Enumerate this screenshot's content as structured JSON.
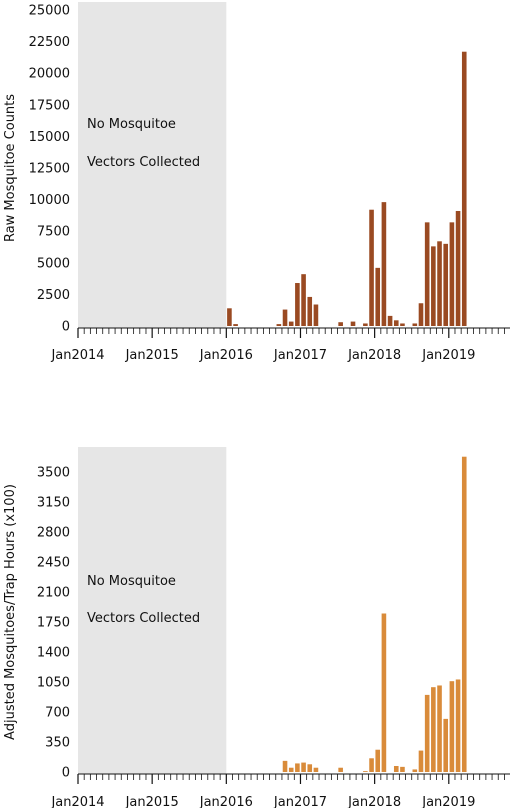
{
  "chart_data": [
    {
      "type": "bar",
      "ylabel": "Raw Mosquitoe Counts",
      "xlabel": "",
      "ylim": [
        0,
        25000
      ],
      "yticks": [
        0,
        2500,
        5000,
        7500,
        10000,
        12500,
        15000,
        17500,
        20000,
        22500,
        25000
      ],
      "xticks": [
        "Jan2014",
        "Jan2015",
        "Jan2016",
        "Jan2017",
        "Jan2018",
        "Jan2019"
      ],
      "shaded_note": [
        "No Mosquitoe",
        "Vectors Collected"
      ],
      "color": "#9a4a22",
      "x": [
        "2016-01",
        "2016-02",
        "2016-03",
        "2016-04",
        "2016-05",
        "2016-06",
        "2016-07",
        "2016-08",
        "2016-09",
        "2016-10",
        "2016-11",
        "2016-12",
        "2017-01",
        "2017-02",
        "2017-03",
        "2017-04",
        "2017-05",
        "2017-06",
        "2017-07",
        "2017-08",
        "2017-09",
        "2017-10",
        "2017-11",
        "2017-12",
        "2018-01",
        "2018-02",
        "2018-03",
        "2018-04",
        "2018-05",
        "2018-06",
        "2018-07",
        "2018-08",
        "2018-09",
        "2018-10",
        "2018-11",
        "2018-12",
        "2019-01",
        "2019-02",
        "2019-03",
        "2019-04",
        "2019-05"
      ],
      "values": [
        1400,
        150,
        0,
        0,
        0,
        0,
        0,
        0,
        150,
        1300,
        350,
        3400,
        4100,
        2300,
        1700,
        0,
        0,
        0,
        300,
        0,
        350,
        0,
        200,
        9200,
        4600,
        9800,
        800,
        450,
        200,
        0,
        200,
        1800,
        8200,
        6300,
        6700,
        6500,
        8200,
        9100,
        21700,
        0,
        0
      ]
    },
    {
      "type": "bar",
      "ylabel": "Adjusted Mosquitoes/Trap Hours (x100)",
      "xlabel": "",
      "ylim": [
        0,
        3700
      ],
      "yticks": [
        0,
        350,
        700,
        1050,
        1400,
        1750,
        2100,
        2450,
        2800,
        3150,
        3500
      ],
      "xticks": [
        "Jan2014",
        "Jan2015",
        "Jan2016",
        "Jan2017",
        "Jan2018",
        "Jan2019"
      ],
      "shaded_note": [
        "No Mosquitoe",
        "Vectors Collected"
      ],
      "color": "#d98b3a",
      "x": [
        "2016-01",
        "2016-02",
        "2016-03",
        "2016-04",
        "2016-05",
        "2016-06",
        "2016-07",
        "2016-08",
        "2016-09",
        "2016-10",
        "2016-11",
        "2016-12",
        "2017-01",
        "2017-02",
        "2017-03",
        "2017-04",
        "2017-05",
        "2017-06",
        "2017-07",
        "2017-08",
        "2017-09",
        "2017-10",
        "2017-11",
        "2017-12",
        "2018-01",
        "2018-02",
        "2018-03",
        "2018-04",
        "2018-05",
        "2018-06",
        "2018-07",
        "2018-08",
        "2018-09",
        "2018-10",
        "2018-11",
        "2018-12",
        "2019-01",
        "2019-02",
        "2019-03",
        "2019-04",
        "2019-05"
      ],
      "values": [
        0,
        0,
        0,
        0,
        0,
        0,
        0,
        0,
        0,
        130,
        50,
        100,
        110,
        90,
        50,
        0,
        0,
        0,
        50,
        0,
        0,
        0,
        10,
        160,
        260,
        1850,
        0,
        70,
        60,
        0,
        30,
        250,
        900,
        990,
        1010,
        620,
        1060,
        1080,
        3680,
        0,
        0
      ]
    }
  ]
}
